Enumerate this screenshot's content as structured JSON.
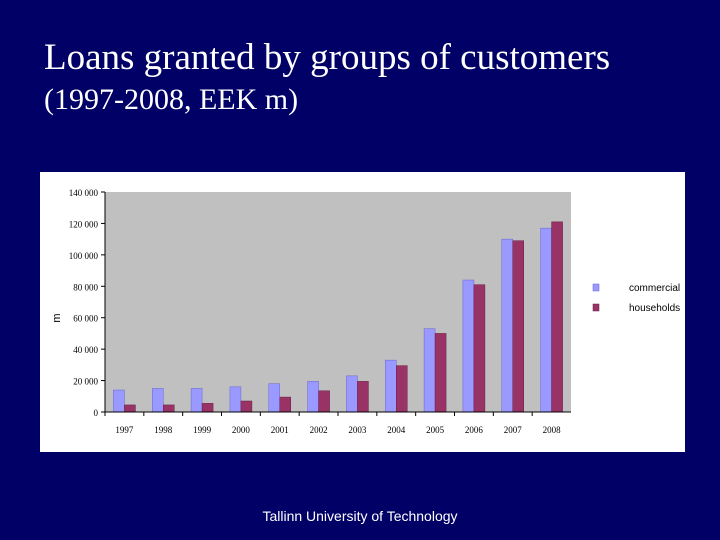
{
  "slide": {
    "title": "Loans granted by groups of customers",
    "subtitle": "(1997-2008, EEK m)",
    "footer": "Tallinn University of Technology"
  },
  "colors": {
    "background": "#000066",
    "plot_area": "#c0c0c0",
    "commercial": "#9999ff",
    "households": "#993366"
  },
  "chart_data": {
    "type": "bar",
    "title": "",
    "xlabel": "",
    "ylabel": "m",
    "categories": [
      "1997",
      "1998",
      "1999",
      "2000",
      "2001",
      "2002",
      "2003",
      "2004",
      "2005",
      "2006",
      "2007",
      "2008"
    ],
    "series": [
      {
        "name": "commercial",
        "values": [
          14000,
          15000,
          15000,
          16000,
          18000,
          19500,
          23000,
          33000,
          53000,
          84000,
          110000,
          117000
        ]
      },
      {
        "name": "households",
        "values": [
          4500,
          4500,
          5500,
          7000,
          9500,
          13500,
          19500,
          29500,
          50000,
          81000,
          109000,
          121000
        ]
      }
    ],
    "ylim": [
      0,
      140000
    ],
    "yticks": [
      0,
      20000,
      40000,
      60000,
      80000,
      100000,
      120000,
      140000
    ],
    "ytick_labels": [
      "0",
      "20 000",
      "40 000",
      "60 000",
      "80 000",
      "100 000",
      "120 000",
      "140 000"
    ],
    "grid": false,
    "legend_position": "right"
  }
}
